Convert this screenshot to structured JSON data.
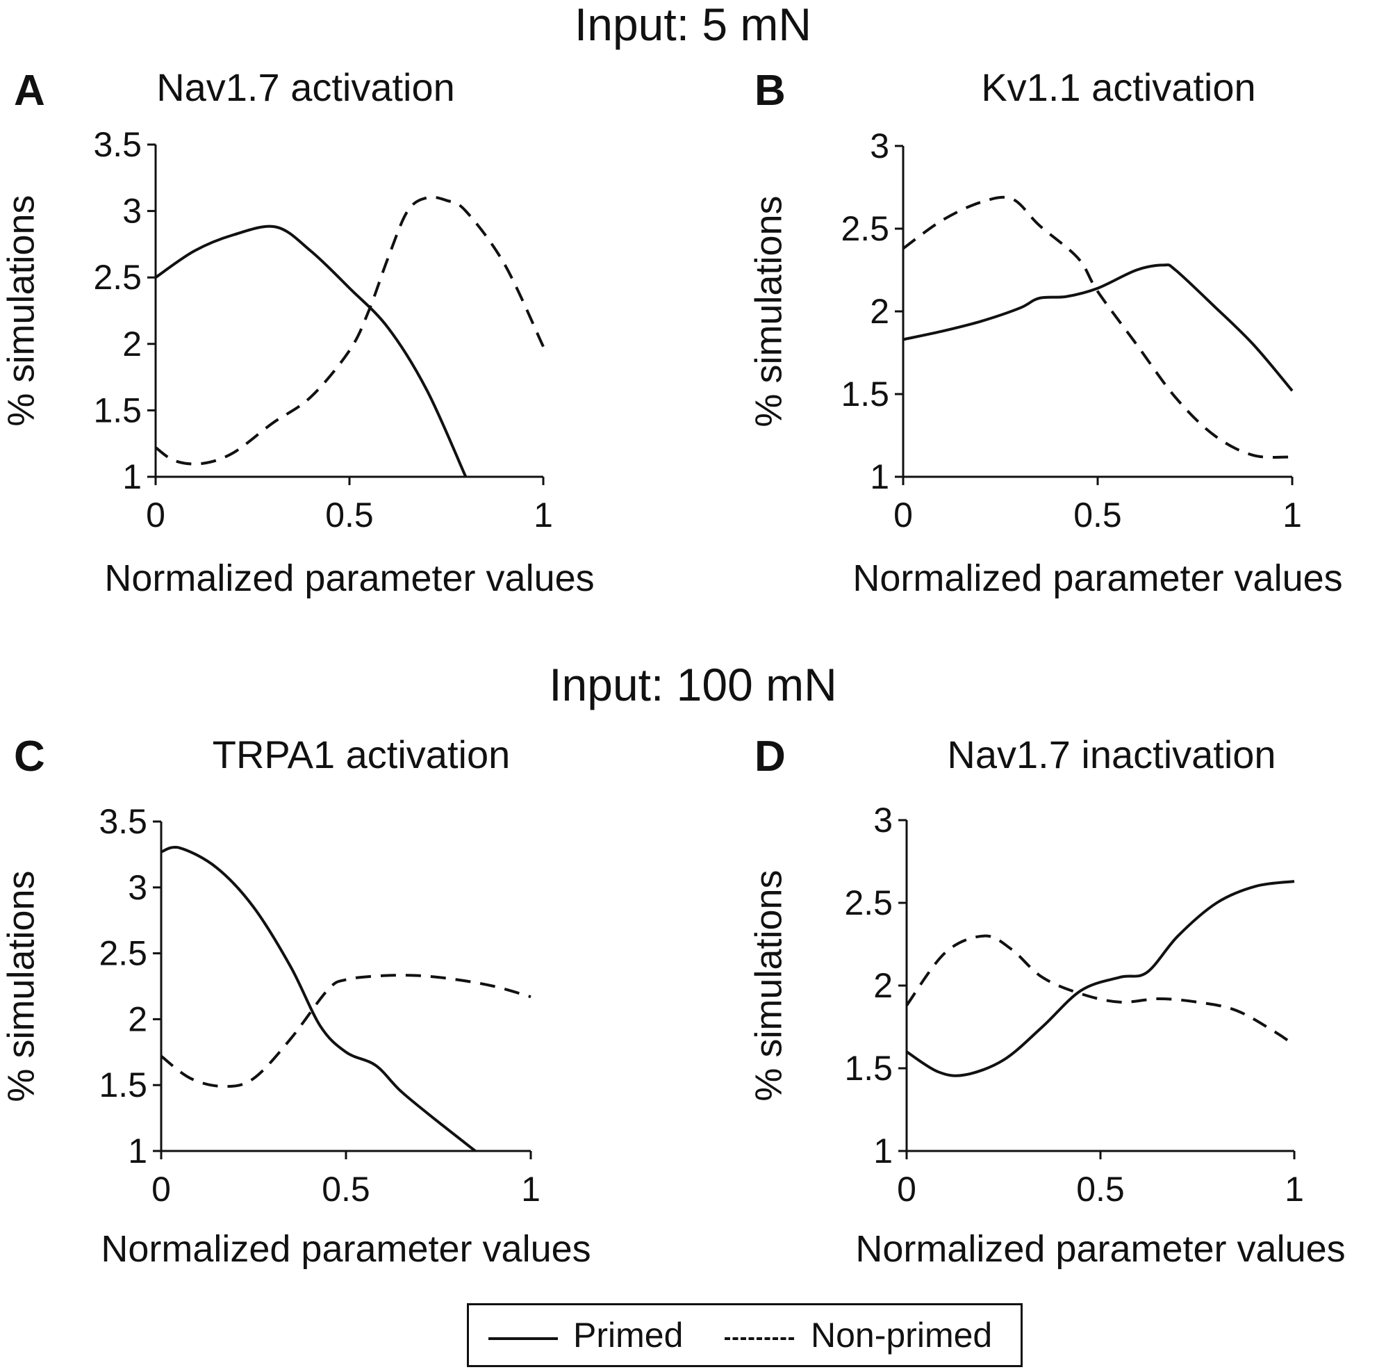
{
  "figure": {
    "top_title": "Input: 5 mN",
    "bottom_title": "Input: 100 mN"
  },
  "legend": {
    "primed_label": "Primed",
    "nonprimed_label": "Non-primed"
  },
  "colors": {
    "line": "#111111",
    "axis": "#111111",
    "background": "#ffffff"
  },
  "chart_data": [
    {
      "type": "line",
      "panel": "A",
      "title": "Nav1.7 activation",
      "xlabel": "Normalized parameter values",
      "ylabel": "% simulations",
      "xlim": [
        0,
        1
      ],
      "ylim": [
        1,
        3.5
      ],
      "xticks": [
        0,
        0.5,
        1
      ],
      "xtick_labels": [
        "0",
        "0.5",
        "1"
      ],
      "yticks": [
        1,
        1.5,
        2,
        2.5,
        3,
        3.5
      ],
      "ytick_labels": [
        "1",
        "1.5",
        "2",
        "2.5",
        "3",
        "3.5"
      ],
      "series": [
        {
          "name": "Primed",
          "style": "solid",
          "x": [
            0,
            0.1,
            0.2,
            0.31,
            0.4,
            0.5,
            0.6,
            0.7,
            0.8
          ],
          "y": [
            2.5,
            2.7,
            2.82,
            2.88,
            2.7,
            2.42,
            2.12,
            1.65,
            1.0
          ]
        },
        {
          "name": "Non-primed",
          "style": "dashed",
          "x": [
            0,
            0.05,
            0.12,
            0.2,
            0.3,
            0.4,
            0.5,
            0.55,
            0.6,
            0.65,
            0.7,
            0.75,
            0.8,
            0.9,
            1.0
          ],
          "y": [
            1.22,
            1.12,
            1.1,
            1.18,
            1.4,
            1.6,
            1.95,
            2.25,
            2.65,
            3.0,
            3.1,
            3.08,
            3.0,
            2.6,
            1.98
          ]
        }
      ]
    },
    {
      "type": "line",
      "panel": "B",
      "title": "Kv1.1 activation",
      "xlabel": "Normalized parameter values",
      "ylabel": "% simulations",
      "xlim": [
        0,
        1
      ],
      "ylim": [
        1,
        3
      ],
      "xticks": [
        0,
        0.5,
        1
      ],
      "xtick_labels": [
        "0",
        "0.5",
        "1"
      ],
      "yticks": [
        1,
        1.5,
        2,
        2.5,
        3
      ],
      "ytick_labels": [
        "1",
        "1.5",
        "2",
        "2.5",
        "3"
      ],
      "series": [
        {
          "name": "Primed",
          "style": "solid",
          "x": [
            0,
            0.1,
            0.2,
            0.3,
            0.35,
            0.42,
            0.5,
            0.6,
            0.67,
            0.7,
            0.8,
            0.9,
            1.0
          ],
          "y": [
            1.83,
            1.88,
            1.94,
            2.02,
            2.08,
            2.09,
            2.14,
            2.25,
            2.28,
            2.25,
            2.03,
            1.8,
            1.52
          ]
        },
        {
          "name": "Non-primed",
          "style": "dashed",
          "x": [
            0,
            0.1,
            0.2,
            0.28,
            0.35,
            0.45,
            0.5,
            0.6,
            0.7,
            0.8,
            0.9,
            1.0
          ],
          "y": [
            2.38,
            2.55,
            2.66,
            2.68,
            2.52,
            2.32,
            2.12,
            1.8,
            1.48,
            1.25,
            1.13,
            1.12
          ]
        }
      ]
    },
    {
      "type": "line",
      "panel": "C",
      "title": "TRPA1 activation",
      "xlabel": "Normalized parameter values",
      "ylabel": "% simulations",
      "xlim": [
        0,
        1
      ],
      "ylim": [
        1,
        3.5
      ],
      "xticks": [
        0,
        0.5,
        1
      ],
      "xtick_labels": [
        "0",
        "0.5",
        "1"
      ],
      "yticks": [
        1,
        1.5,
        2,
        2.5,
        3,
        3.5
      ],
      "ytick_labels": [
        "1",
        "1.5",
        "2",
        "2.5",
        "3",
        "3.5"
      ],
      "series": [
        {
          "name": "Primed",
          "style": "solid",
          "x": [
            0,
            0.05,
            0.15,
            0.25,
            0.35,
            0.43,
            0.5,
            0.58,
            0.65,
            0.75,
            0.85
          ],
          "y": [
            3.27,
            3.3,
            3.15,
            2.85,
            2.4,
            1.95,
            1.75,
            1.65,
            1.45,
            1.22,
            1.0
          ]
        },
        {
          "name": "Non-primed",
          "style": "dashed",
          "x": [
            0,
            0.08,
            0.17,
            0.25,
            0.35,
            0.45,
            0.5,
            0.6,
            0.7,
            0.8,
            0.9,
            1.0
          ],
          "y": [
            1.72,
            1.55,
            1.49,
            1.55,
            1.85,
            2.22,
            2.3,
            2.33,
            2.33,
            2.3,
            2.25,
            2.17
          ]
        }
      ]
    },
    {
      "type": "line",
      "panel": "D",
      "title": "Nav1.7 inactivation",
      "xlabel": "Normalized parameter values",
      "ylabel": "% simulations",
      "xlim": [
        0,
        1
      ],
      "ylim": [
        1,
        3
      ],
      "xticks": [
        0,
        0.5,
        1
      ],
      "xtick_labels": [
        "0",
        "0.5",
        "1"
      ],
      "yticks": [
        1,
        1.5,
        2,
        2.5,
        3
      ],
      "ytick_labels": [
        "1",
        "1.5",
        "2",
        "2.5",
        "3"
      ],
      "series": [
        {
          "name": "Primed",
          "style": "solid",
          "x": [
            0,
            0.08,
            0.15,
            0.25,
            0.35,
            0.45,
            0.55,
            0.62,
            0.7,
            0.8,
            0.9,
            1.0
          ],
          "y": [
            1.6,
            1.48,
            1.46,
            1.55,
            1.75,
            1.97,
            2.05,
            2.08,
            2.3,
            2.5,
            2.6,
            2.63
          ]
        },
        {
          "name": "Non-primed",
          "style": "dashed",
          "x": [
            0,
            0.1,
            0.2,
            0.27,
            0.35,
            0.45,
            0.55,
            0.65,
            0.75,
            0.85,
            0.95,
            1.0
          ],
          "y": [
            1.88,
            2.2,
            2.3,
            2.22,
            2.05,
            1.95,
            1.9,
            1.92,
            1.9,
            1.85,
            1.72,
            1.64
          ]
        }
      ]
    }
  ]
}
